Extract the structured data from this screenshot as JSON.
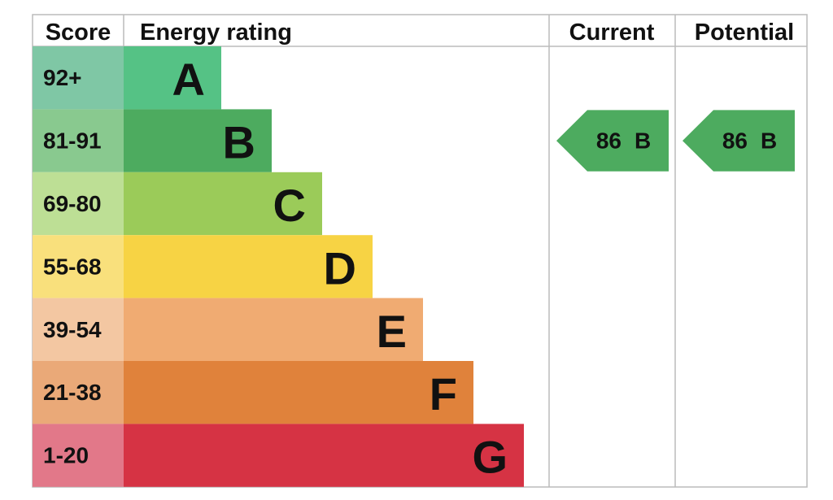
{
  "header": {
    "score": "Score",
    "energy_rating": "Energy rating",
    "current": "Current",
    "potential": "Potential"
  },
  "bands": [
    {
      "score": "92+",
      "letter": "A",
      "color": "#55c285",
      "score_color": "#7fc7a5"
    },
    {
      "score": "81-91",
      "letter": "B",
      "color": "#4dab5f",
      "score_color": "#89c98f"
    },
    {
      "score": "69-80",
      "letter": "C",
      "color": "#9bcb59",
      "score_color": "#bddf95"
    },
    {
      "score": "55-68",
      "letter": "D",
      "color": "#f7d344",
      "score_color": "#f9e07c"
    },
    {
      "score": "39-54",
      "letter": "E",
      "color": "#f0ab72",
      "score_color": "#f3c7a2"
    },
    {
      "score": "21-38",
      "letter": "F",
      "color": "#e0823b",
      "score_color": "#eaa978"
    },
    {
      "score": "1-20",
      "letter": "G",
      "color": "#d63344",
      "score_color": "#e27889"
    }
  ],
  "current": {
    "value": "86",
    "letter": "B"
  },
  "potential": {
    "value": "86",
    "letter": "B"
  }
}
